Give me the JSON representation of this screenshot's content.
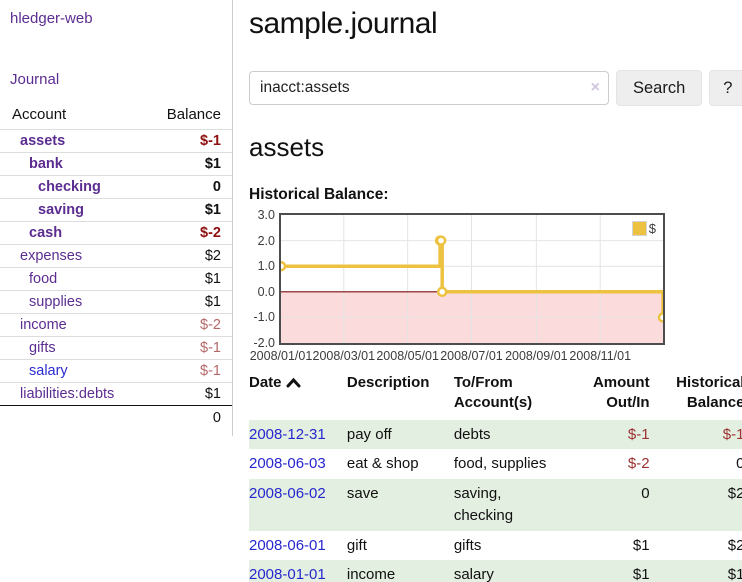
{
  "sidebar": {
    "app_title": "hledger-web",
    "nav_journal": "Journal",
    "accounts_table": {
      "col_account": "Account",
      "col_balance": "Balance",
      "rows": [
        {
          "name": "assets",
          "depth": 0,
          "bold": true,
          "balance": "$-1"
        },
        {
          "name": "bank",
          "depth": 1,
          "bold": true,
          "balance": "$1"
        },
        {
          "name": "checking",
          "depth": 2,
          "bold": true,
          "balance": "0"
        },
        {
          "name": "saving",
          "depth": 2,
          "bold": true,
          "balance": "$1"
        },
        {
          "name": "cash",
          "depth": 1,
          "bold": true,
          "balance": "$-2"
        },
        {
          "name": "expenses",
          "depth": 0,
          "bold": false,
          "balance": "$2"
        },
        {
          "name": "food",
          "depth": 1,
          "bold": false,
          "balance": "$1"
        },
        {
          "name": "supplies",
          "depth": 1,
          "bold": false,
          "balance": "$1"
        },
        {
          "name": "income",
          "depth": 0,
          "bold": false,
          "balance": "$-2"
        },
        {
          "name": "gifts",
          "depth": 1,
          "bold": false,
          "balance": "$-1"
        },
        {
          "name": "salary",
          "depth": 1,
          "bold": false,
          "balance": "$-1",
          "name_color": "#2b2bd0"
        },
        {
          "name": "liabilities:debts",
          "depth": 0,
          "bold": false,
          "balance": "$1"
        }
      ],
      "total": "0"
    }
  },
  "main": {
    "title": "sample.journal",
    "search": {
      "value": "inacct:assets",
      "clear_icon": "×",
      "button": "Search",
      "help_button": "?"
    },
    "account_heading": "assets",
    "chart_label": "Historical Balance:"
  },
  "chart_data": {
    "type": "line",
    "title": "Historical Balance:",
    "step": true,
    "series": [
      {
        "name": "$",
        "color": "#edc240",
        "points": [
          {
            "date": "2008-01-01",
            "value": 1
          },
          {
            "date": "2008-06-01",
            "value": 2
          },
          {
            "date": "2008-06-02",
            "value": 2
          },
          {
            "date": "2008-06-03",
            "value": 0
          },
          {
            "date": "2008-12-31",
            "value": -1
          }
        ]
      }
    ],
    "xlim": [
      "2008-01-01",
      "2008-12-31"
    ],
    "ylim": [
      -2,
      3
    ],
    "x_ticks": [
      "2008/01/01",
      "2008/03/01",
      "2008/05/01",
      "2008/07/01",
      "2008/09/01",
      "2008/11/01"
    ],
    "y_ticks": [
      "3.0",
      "2.0",
      "1.0",
      "0.0",
      "-1.0",
      "-2.0"
    ],
    "grid": true,
    "negative_fill": "#fbdbdb",
    "zero_line_color": "#7a0c0c",
    "grid_color": "#e4e4e4",
    "border_color": "#4d4d4d",
    "legend": {
      "position": "top-right",
      "label": "$"
    }
  },
  "register": {
    "sort_column": "Date",
    "sort_direction": "asc",
    "headers": [
      {
        "lines": [
          "Date"
        ],
        "sortable": true
      },
      {
        "lines": [
          "Description"
        ]
      },
      {
        "lines": [
          "To/From",
          "Account(s)"
        ]
      },
      {
        "lines": [
          "Amount",
          "Out/In"
        ],
        "align": "right"
      },
      {
        "lines": [
          "Historical",
          "Balance"
        ],
        "align": "right"
      }
    ],
    "rows": [
      {
        "date": "2008-12-31",
        "description": "pay off",
        "accounts": [
          "debts"
        ],
        "amount": "$-1",
        "balance": "$-1",
        "shaded": true
      },
      {
        "date": "2008-06-03",
        "description": "eat & shop",
        "accounts": [
          "food, supplies"
        ],
        "amount": "$-2",
        "balance": "0",
        "shaded": false
      },
      {
        "date": "2008-06-02",
        "description": "save",
        "accounts": [
          "saving,",
          "checking"
        ],
        "amount": "0",
        "balance": "$2",
        "shaded": true
      },
      {
        "date": "2008-06-01",
        "description": "gift",
        "accounts": [
          "gifts"
        ],
        "amount": "$1",
        "balance": "$2",
        "shaded": false
      },
      {
        "date": "2008-01-01",
        "description": "income",
        "accounts": [
          "salary"
        ],
        "amount": "$1",
        "balance": "$1",
        "shaded": true
      }
    ]
  },
  "colors": {
    "link_purple": "#5c2d91",
    "link_blue": "#2727cf",
    "negative_strong": "#8f1010",
    "negative_muted": "#b46868",
    "register_shaded_row": "#e3efe0",
    "chart_line": "#edc240"
  }
}
